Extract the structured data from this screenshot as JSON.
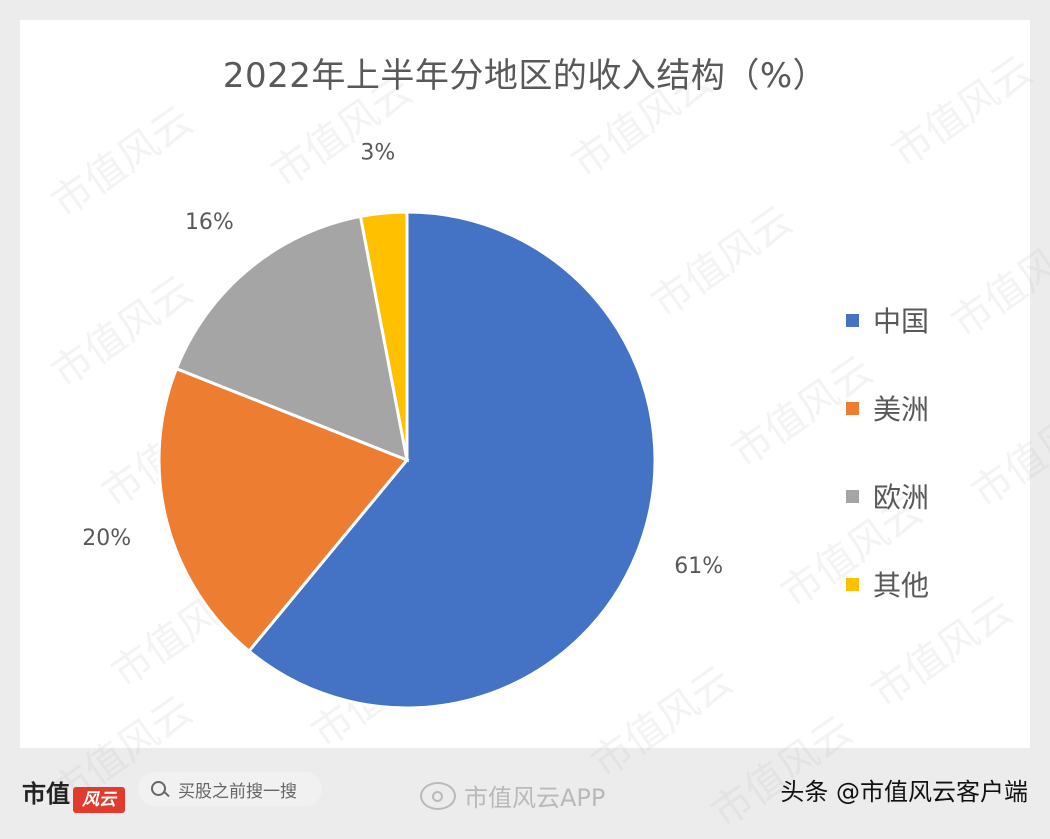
{
  "chart_data": {
    "type": "pie",
    "title": "2022年上半年分地区的收入结构（%）",
    "categories": [
      "中国",
      "美洲",
      "欧洲",
      "其他"
    ],
    "values": [
      61,
      20,
      16,
      3
    ],
    "data_labels": [
      "61%",
      "20%",
      "16%",
      "3%"
    ],
    "colors": [
      "#4472c4",
      "#ed7d31",
      "#a5a5a5",
      "#ffc000"
    ],
    "legend_position": "right",
    "start_angle_deg": 0,
    "direction": "clockwise"
  },
  "watermark": {
    "text": "市值风云"
  },
  "footer": {
    "brand_text": "市值",
    "brand_seal": "风云",
    "search_placeholder": "买股之前搜一搜",
    "weibo_handle": "市值风云APP",
    "source": "头条 @市值风云客户端"
  }
}
